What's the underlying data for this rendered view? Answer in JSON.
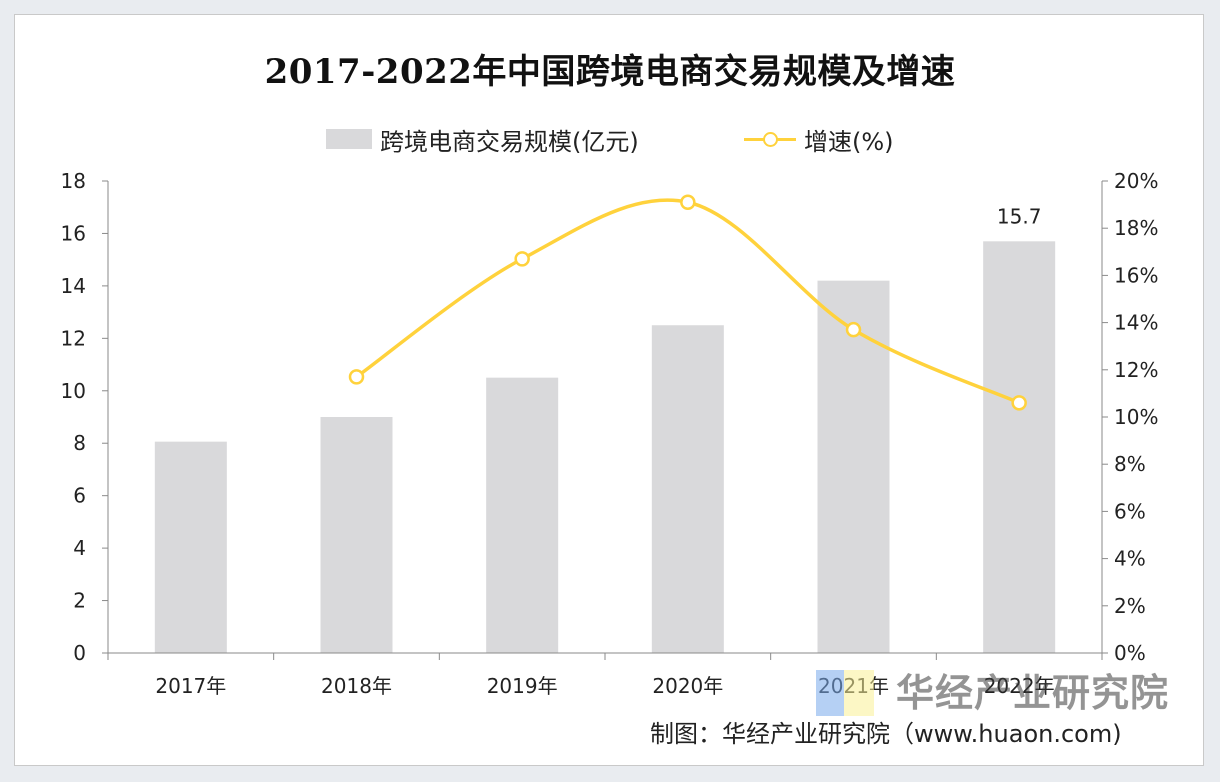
{
  "chart_data": {
    "type": "bar+line",
    "title": "2017-2022年中国跨境电商交易规模及增速",
    "categories": [
      "2017年",
      "2018年",
      "2019年",
      "2020年",
      "2021年",
      "2022年"
    ],
    "series": [
      {
        "name": "跨境电商交易规模(亿元)",
        "type": "bar",
        "axis": "left",
        "values": [
          8.06,
          9.0,
          10.5,
          12.5,
          14.2,
          15.7
        ],
        "color": "#d9d9db"
      },
      {
        "name": "增速(%)",
        "type": "line",
        "axis": "right",
        "values": [
          null,
          11.7,
          16.7,
          19.1,
          13.7,
          10.6
        ],
        "color": "#ffd23c"
      }
    ],
    "data_labels": [
      {
        "category": "2022年",
        "text": "15.7"
      }
    ],
    "y_left": {
      "min": 0,
      "max": 18,
      "step": 2,
      "ticks": [
        "0",
        "2",
        "4",
        "6",
        "8",
        "10",
        "12",
        "14",
        "16",
        "18"
      ]
    },
    "y_right": {
      "min": 0,
      "max": 20,
      "step": 2,
      "ticks": [
        "0%",
        "2%",
        "4%",
        "6%",
        "8%",
        "10%",
        "12%",
        "14%",
        "16%",
        "18%",
        "20%"
      ]
    },
    "grid": false,
    "legend": "top-center"
  },
  "watermark": "华经产业研究院",
  "source": "制图：华经产业研究院（www.huaon.com)"
}
